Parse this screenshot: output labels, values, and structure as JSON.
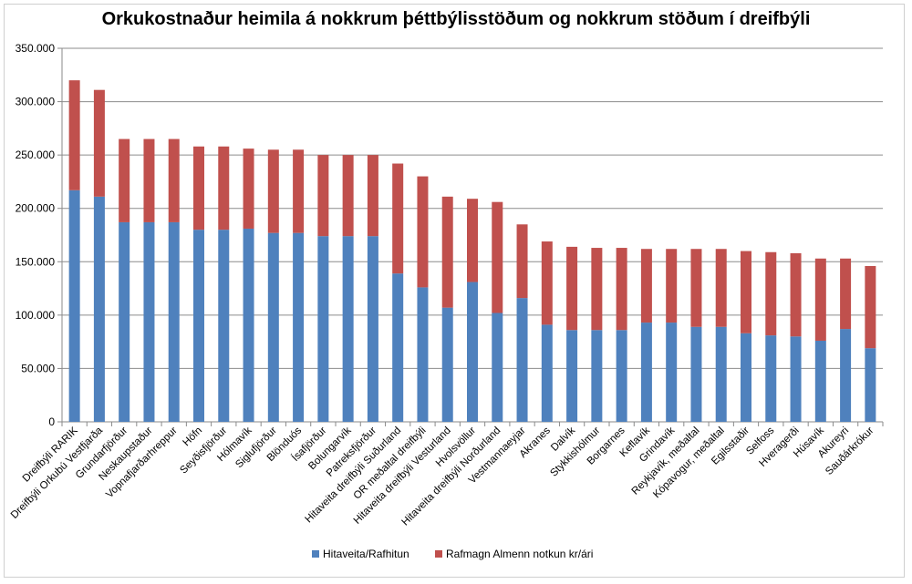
{
  "chart_data": {
    "type": "bar",
    "stacked": true,
    "title": "Orkukostnaður heimila á nokkrum þéttbýlisstöðum og nokkrum stöðum í dreifbýli",
    "ylim": [
      0,
      350000
    ],
    "yticks": [
      "0",
      "50.000",
      "100.000",
      "150.000",
      "200.000",
      "250.000",
      "300.000",
      "350.000"
    ],
    "ytick_values": [
      0,
      50000,
      100000,
      150000,
      200000,
      250000,
      300000,
      350000
    ],
    "grid": true,
    "legend_position": "bottom",
    "categories": [
      "Dreifbýli RARIK",
      "Dreifbýli Orkubú Vestfjarða",
      "Grundarfjörður",
      "Neskaupstaður",
      "Vopnafjarðarhreppur",
      "Höfn",
      "Seyðisfjörður",
      "Hólmavík",
      "Siglufjörður",
      "Blönduós",
      "Ísafjörður",
      "Bolungarvík",
      "Patreksfjörður",
      "Hitaveita dreifbýli Suðurland",
      "OR meðaltal dreifbýli",
      "Hitaveita dreifbýli Vesturland",
      "Hvolsvöllur",
      "Hitaveita dreifbýli Norðurland",
      "Vestmannaeyjar",
      "Akranes",
      "Dalvík",
      "Stykkishólmur",
      "Borgarnes",
      "Keflavík",
      "Grindavík",
      "Reykjavík, meðaltal",
      "Kópavogur, meðaltal",
      "Egilsstaðir",
      "Selfoss",
      "Hveragerði",
      "Húsavík",
      "Akureyri",
      "Sauðárkrókur"
    ],
    "series": [
      {
        "name": "Hitaveita/Rafhitun",
        "color": "#4f81bd",
        "values": [
          217000,
          211000,
          187000,
          187000,
          187000,
          180000,
          180000,
          181000,
          177000,
          177000,
          174000,
          174000,
          174000,
          139000,
          126000,
          107000,
          131000,
          102000,
          116000,
          91000,
          86000,
          86000,
          86000,
          93000,
          93000,
          89000,
          89000,
          83000,
          81000,
          80000,
          76000,
          87000,
          69000
        ]
      },
      {
        "name": "Rafmagn Almenn notkun kr/ári",
        "color": "#c0504d",
        "values": [
          103000,
          100000,
          78000,
          78000,
          78000,
          78000,
          78000,
          75000,
          78000,
          78000,
          76000,
          76000,
          76000,
          103000,
          104000,
          104000,
          78000,
          104000,
          69000,
          78000,
          78000,
          77000,
          77000,
          69000,
          69000,
          73000,
          73000,
          77000,
          78000,
          78000,
          77000,
          66000,
          77000
        ]
      }
    ]
  }
}
